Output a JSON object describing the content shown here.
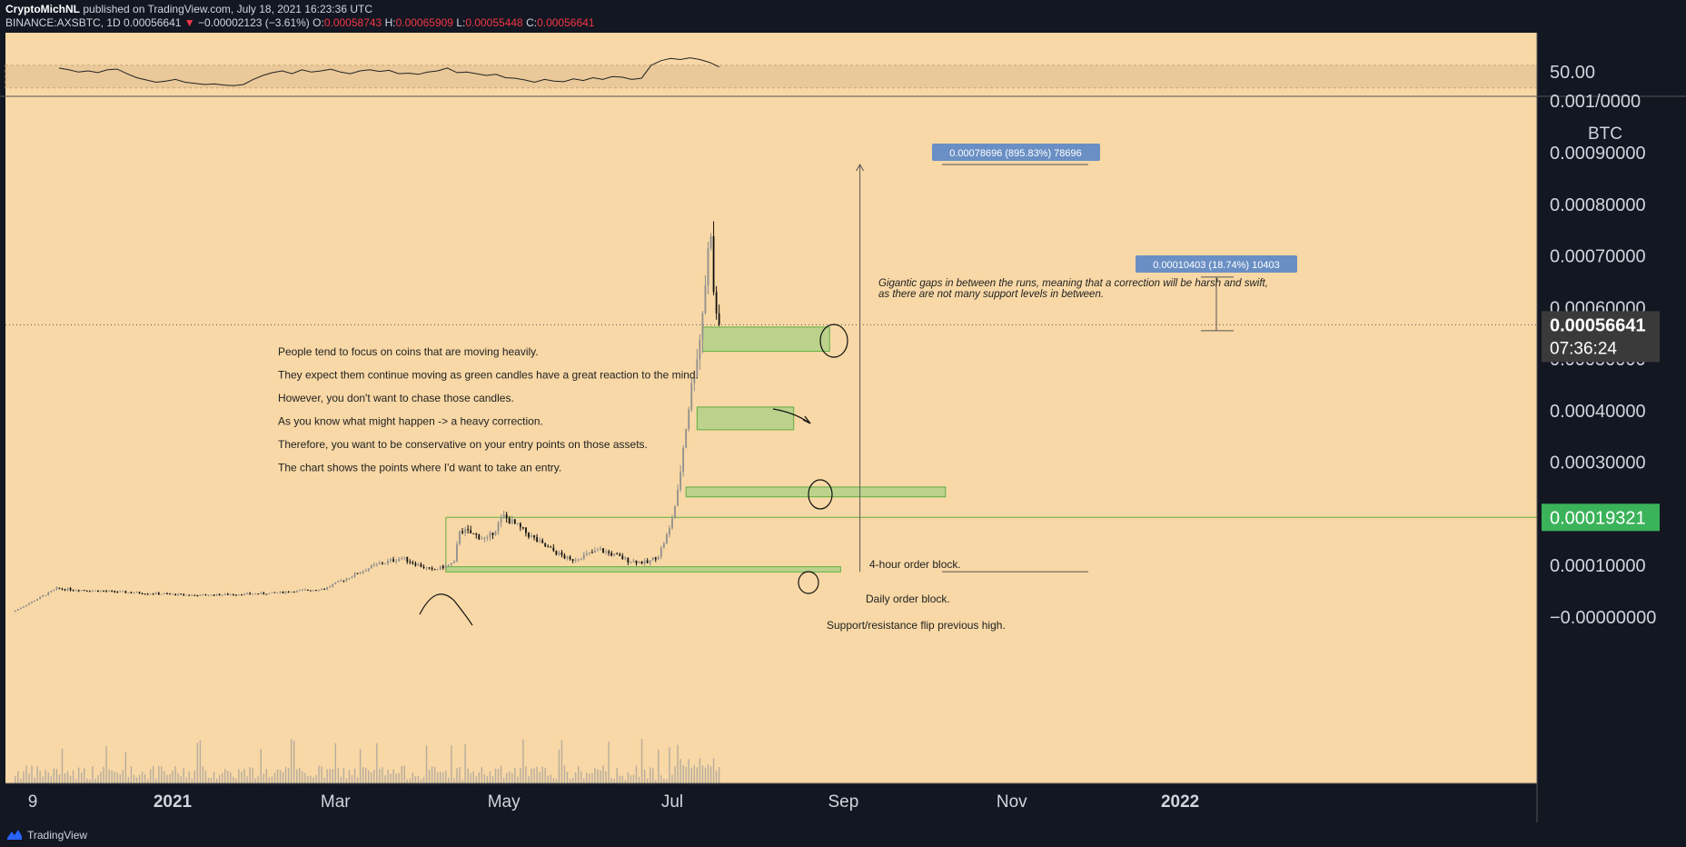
{
  "header": {
    "author": "CryptoMichNL",
    "published": "published on TradingView.com, July 18, 2021 16:23:36 UTC",
    "symbol": "BINANCE:AXSBTC, 1D",
    "last": "0.00056641",
    "arrow": "▼",
    "change": "−0.00002123 (−3.61%)",
    "o_label": "O:",
    "o": "0.00058743",
    "h_label": "H:",
    "h": "0.00065909",
    "l_label": "L:",
    "l": "0.00055448",
    "c_label": "C:",
    "c": "0.00056641"
  },
  "footer": {
    "brand": "TradingView"
  },
  "colors": {
    "background": "#f8d8a6",
    "candle_up": "#8f8f8f",
    "candle_down": "#111111",
    "zone": "#b5d18a",
    "zone_border": "#5fae3f",
    "label_box": "#6a8fc4",
    "price_tag_dark": "#3a3a3a",
    "price_tag_green": "#3bb35a",
    "rsi_band": "#e9c89a"
  },
  "chart_data": {
    "type": "candlestick",
    "symbol": "BINANCE:AXSBTC",
    "interval": "1D",
    "unit": "BTC",
    "date_range": [
      "2020-11-04",
      "2021-07-18"
    ],
    "ylim": [
      -8e-05,
      0.001
    ],
    "y_ticks": [
      "0.00090000",
      "0.00080000",
      "0.00070000",
      "0.00060000",
      "0.00050000",
      "0.00040000",
      "0.00030000",
      "0.00010000",
      "−0.00000000"
    ],
    "y_tick_values": [
      0.0009,
      0.0008,
      0.0007,
      0.0006,
      0.0005,
      0.0004,
      0.0003,
      0.0001,
      0
    ],
    "partial_top_tick": "0.001/0000",
    "x_ticks": [
      "9",
      "2021",
      "Mar",
      "May",
      "Jul",
      "Sep",
      "Nov",
      "2022"
    ],
    "x_tick_dates": [
      "2020-11-09",
      "2021-01-01",
      "2021-03-01",
      "2021-05-01",
      "2021-07-01",
      "2021-09-01",
      "2021-11-01",
      "2022-01-01"
    ],
    "current_price_label": "0.00056641",
    "countdown": "07:36:24",
    "green_level_label": "0.00019321",
    "green_level_value": 0.00019321,
    "rsi": {
      "label": "50.00",
      "band": [
        30,
        70
      ],
      "values": [
        65,
        62,
        58,
        60,
        57,
        62,
        63,
        55,
        48,
        44,
        40,
        42,
        45,
        40,
        38,
        36,
        37,
        35,
        34,
        36,
        45,
        52,
        57,
        60,
        55,
        62,
        58,
        60,
        63,
        58,
        55,
        60,
        62,
        59,
        61,
        55,
        56,
        54,
        58,
        60,
        65,
        57,
        58,
        55,
        52,
        54,
        48,
        47,
        44,
        40,
        45,
        42,
        41,
        46,
        43,
        48,
        45,
        50,
        49,
        45,
        47,
        70,
        78,
        82,
        80,
        83,
        80,
        75,
        67
      ]
    },
    "price_path": [
      [
        "2020-11-04",
        1e-05
      ],
      [
        "2020-11-20",
        5.5e-05
      ],
      [
        "2020-12-15",
        4.8e-05
      ],
      [
        "2021-01-10",
        4.2e-05
      ],
      [
        "2021-02-05",
        4.6e-05
      ],
      [
        "2021-02-25",
        5.5e-05
      ],
      [
        "2021-03-15",
        0.0001
      ],
      [
        "2021-03-25",
        0.000115
      ],
      [
        "2021-04-05",
        9e-05
      ],
      [
        "2021-04-13",
        0.000105
      ],
      [
        "2021-04-15",
        0.00017
      ],
      [
        "2021-04-25",
        0.00015
      ],
      [
        "2021-05-01",
        0.000195
      ],
      [
        "2021-05-15",
        0.00014
      ],
      [
        "2021-05-25",
        0.00011
      ],
      [
        "2021-06-05",
        0.00013
      ],
      [
        "2021-06-15",
        0.00011
      ],
      [
        "2021-06-22",
        0.000105
      ],
      [
        "2021-06-26",
        0.00012
      ],
      [
        "2021-06-30",
        0.00017
      ],
      [
        "2021-07-03",
        0.00024
      ],
      [
        "2021-07-05",
        0.00033
      ],
      [
        "2021-07-07",
        0.00041
      ],
      [
        "2021-07-09",
        0.00048
      ],
      [
        "2021-07-11",
        0.00054
      ],
      [
        "2021-07-13",
        0.00065
      ],
      [
        "2021-07-15",
        0.00076
      ],
      [
        "2021-07-16",
        0.00062
      ],
      [
        "2021-07-17",
        0.00059
      ],
      [
        "2021-07-18",
        0.00056641
      ]
    ],
    "measurements": [
      {
        "label": "0.00078696 (895.83%) 78696",
        "from": 8.78e-05,
        "to": 0.000877
      },
      {
        "label": "0.00010403 (18.74%) 10403",
        "from": 0.000555,
        "to": 0.000659
      }
    ],
    "zones": [
      {
        "name": "order-block-upper",
        "date_from": "2021-07-12",
        "date_to": "2021-08-27",
        "y_from": 0.000515,
        "y_to": 0.000562
      },
      {
        "name": "order-block-middle",
        "date_from": "2021-07-10",
        "date_to": "2021-08-14",
        "y_from": 0.000363,
        "y_to": 0.000407
      },
      {
        "name": "order-block-daily",
        "date_from": "2021-07-06",
        "date_to": "2021-10-08",
        "y_from": 0.000233,
        "y_to": 0.000252
      },
      {
        "name": "support-zone",
        "date_from": "2021-04-10",
        "date_to": "2021-08-31",
        "y_from": 8.75e-05,
        "y_to": 9.75e-05
      },
      {
        "name": "range",
        "date_from": "2021-04-10",
        "date_to": "2022-03-01",
        "y_from": 9.6e-05,
        "y_to": 0.00019321
      }
    ],
    "annotations": {
      "notes": [
        "People tend to focus on coins that are moving heavily.",
        "They expect them continue moving as green candles have a great reaction to the mind.",
        "However, you don't want to chase those candles.",
        "As you know what might happen -> a heavy correction.",
        "Therefore, you want to be conservative on your entry points on those assets.",
        "The chart shows the points where I'd want to take an entry."
      ],
      "gap_note": [
        "Gigantic gaps in between the runs, meaning that a correction will be harsh and swift,",
        "as there are not many support levels in between."
      ],
      "four_hour": "4-hour order block.",
      "daily": "Daily order block.",
      "flip": "Support/resistance flip previous high."
    }
  }
}
